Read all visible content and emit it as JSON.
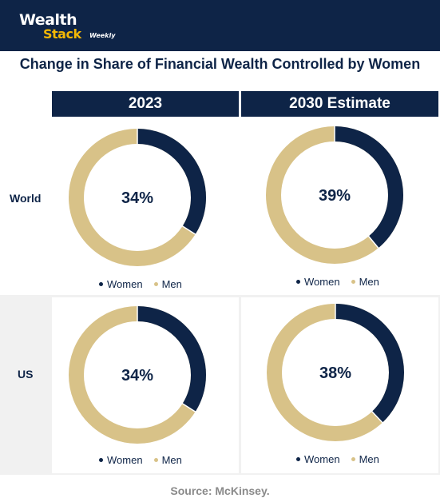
{
  "header": {
    "logo_line1": "Wealth",
    "logo_line2": "Stack",
    "logo_line3": "Weekly"
  },
  "colors": {
    "women": "#0e2447",
    "men": "#d8c288",
    "header_bg": "#0e2447",
    "logo_accent": "#f2b705"
  },
  "chart_data": {
    "type": "pie",
    "title": "Change in Share of Financial Wealth Controlled by Women",
    "columns": [
      "2023",
      "2030 Estimate"
    ],
    "rows": [
      "World",
      "US"
    ],
    "legend": [
      "Women",
      "Men"
    ],
    "panels": [
      {
        "row": "World",
        "column": "2023",
        "women": 34,
        "men": 66,
        "label": "34%"
      },
      {
        "row": "World",
        "column": "2030 Estimate",
        "women": 39,
        "men": 61,
        "label": "39%"
      },
      {
        "row": "US",
        "column": "2023",
        "women": 34,
        "men": 66,
        "label": "34%"
      },
      {
        "row": "US",
        "column": "2030 Estimate",
        "women": 38,
        "men": 62,
        "label": "38%"
      }
    ]
  },
  "source": "Source: McKinsey."
}
